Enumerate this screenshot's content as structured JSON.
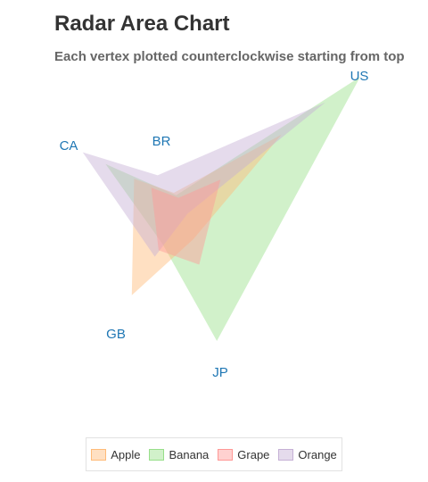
{
  "chart_data": {
    "type": "radar",
    "title": "Radar Area Chart",
    "subtitle": "Each vertex plotted counterclockwise starting from top",
    "categories": [
      "US",
      "BR",
      "CA",
      "GB",
      "JP"
    ],
    "rlim": [
      0,
      100
    ],
    "series": [
      {
        "name": "Apple",
        "color": "#ffbb78",
        "values": [
          55,
          25,
          45,
          70,
          20
        ]
      },
      {
        "name": "Banana",
        "color": "#98df8a",
        "values": [
          100,
          20,
          70,
          30,
          80
        ]
      },
      {
        "name": "Grape",
        "color": "#ff9896",
        "values": [
          20,
          15,
          30,
          35,
          35
        ]
      },
      {
        "name": "Orange",
        "color": "#c5b0d5",
        "values": [
          80,
          60,
          90,
          40,
          5
        ]
      }
    ],
    "legend_position": "bottom",
    "label_color": "#1f77b4"
  }
}
